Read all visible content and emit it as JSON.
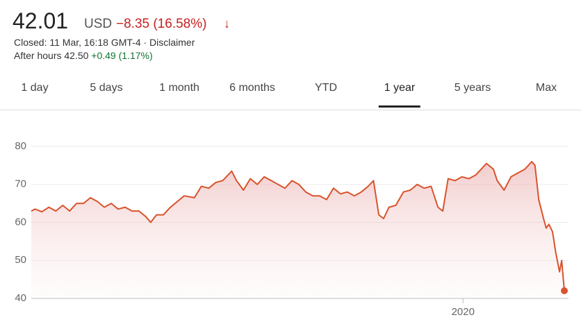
{
  "header": {
    "price": "42.01",
    "currency": "USD",
    "change": "−8.35 (16.58%)",
    "status": "Closed: 11 Mar, 16:18 GMT-4 · Disclaimer",
    "after_hours_label": "After hours 42.50",
    "after_hours_change": "+0.49 (1.17%)"
  },
  "tabs": [
    "1 day",
    "5 days",
    "1 month",
    "6 months",
    "YTD",
    "1 year",
    "5 years",
    "Max"
  ],
  "selected_tab": 5,
  "chart_data": {
    "type": "line",
    "color": "#d9532c",
    "grid": true,
    "x": [
      2019.19,
      2019.197,
      2019.21,
      2019.223,
      2019.236,
      2019.249,
      2019.262,
      2019.275,
      2019.288,
      2019.301,
      2019.314,
      2019.327,
      2019.34,
      2019.353,
      2019.366,
      2019.379,
      2019.392,
      2019.405,
      2019.414,
      2019.425,
      2019.438,
      2019.451,
      2019.464,
      2019.477,
      2019.496,
      2019.509,
      2019.523,
      2019.536,
      2019.549,
      2019.566,
      2019.575,
      2019.588,
      2019.601,
      2019.614,
      2019.627,
      2019.64,
      2019.653,
      2019.666,
      2019.679,
      2019.692,
      2019.705,
      2019.718,
      2019.731,
      2019.744,
      2019.757,
      2019.77,
      2019.783,
      2019.796,
      2019.809,
      2019.822,
      2019.832,
      2019.842,
      2019.851,
      2019.861,
      2019.874,
      2019.888,
      2019.901,
      2019.914,
      2019.927,
      2019.94,
      2019.953,
      2019.962,
      2019.972,
      2019.985,
      2019.998,
      2020.011,
      2020.024,
      2020.044,
      2020.057,
      2020.064,
      2020.077,
      2020.09,
      2020.103,
      2020.116,
      2020.129,
      2020.135,
      2020.142,
      2020.151,
      2020.156,
      2020.161,
      2020.168,
      2020.174,
      2020.181,
      2020.185,
      2020.19
    ],
    "values": [
      63,
      63.5,
      62.8,
      64,
      63,
      64.5,
      63,
      65,
      65,
      66.5,
      65.5,
      64,
      65,
      63.5,
      64,
      63,
      63,
      61.5,
      60,
      62,
      62,
      64,
      65.5,
      67,
      66.5,
      69.5,
      69,
      70.5,
      71,
      73.5,
      71,
      68.5,
      71.5,
      70,
      72,
      71,
      70,
      69,
      71,
      70,
      68,
      67,
      67,
      66,
      69,
      67.5,
      68,
      67,
      68,
      69.5,
      71,
      62,
      61,
      64,
      64.5,
      68,
      68.5,
      70,
      69,
      69.5,
      64,
      63,
      71.5,
      71,
      72,
      71.5,
      72.5,
      75.5,
      74,
      71,
      68.5,
      72,
      73,
      74,
      76,
      75,
      66,
      61,
      58.5,
      59.5,
      57.5,
      52,
      47,
      50,
      42.01
    ],
    "xlim": [
      2019.19,
      2020.19
    ],
    "xticks": [
      2020
    ],
    "ylim": [
      40,
      80
    ],
    "yticks": [
      40,
      50,
      60,
      70,
      80
    ]
  }
}
